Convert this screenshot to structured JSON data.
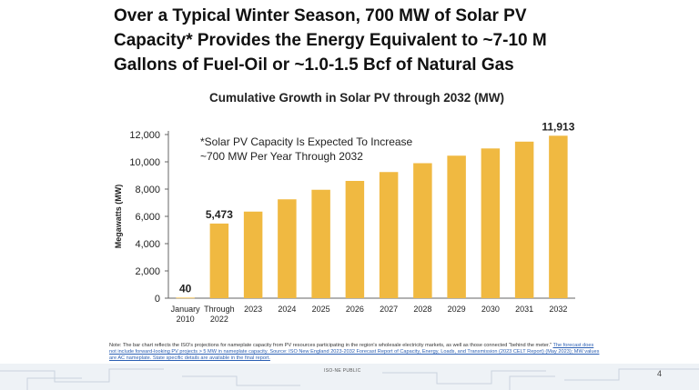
{
  "heading": {
    "line1": "Over a Typical Winter Season, 700 MW of Solar PV",
    "line2": "Capacity* Provides the Energy Equivalent to ~7-10 M",
    "line3": "Gallons of Fuel-Oil or ~1.0-1.5 Bcf of Natural Gas"
  },
  "chart_data": {
    "type": "bar",
    "title": "Cumulative Growth in Solar PV through 2032 (MW)",
    "ylabel": "Megawatts (MW)",
    "xlabel": "",
    "ylim": [
      0,
      12000
    ],
    "yticks": [
      0,
      2000,
      4000,
      6000,
      8000,
      10000,
      12000
    ],
    "ytick_labels": [
      "0",
      "2,000",
      "4,000",
      "6,000",
      "8,000",
      "10,000",
      "12,000"
    ],
    "categories": [
      [
        "January",
        "2010"
      ],
      [
        "Through",
        "2022"
      ],
      [
        "2023"
      ],
      [
        "2024"
      ],
      [
        "2025"
      ],
      [
        "2026"
      ],
      [
        "2027"
      ],
      [
        "2028"
      ],
      [
        "2029"
      ],
      [
        "2030"
      ],
      [
        "2031"
      ],
      [
        "2032"
      ]
    ],
    "values": [
      40,
      5473,
      6350,
      7250,
      7950,
      8600,
      9250,
      9900,
      10450,
      10980,
      11480,
      11913
    ],
    "data_labels": [
      {
        "index": 0,
        "text": "40"
      },
      {
        "index": 1,
        "text": "5,473"
      },
      {
        "index": 11,
        "text": "11,913"
      }
    ],
    "annotation": [
      "*Solar PV Capacity Is Expected To Increase",
      "~700 MW Per Year Through 2032"
    ],
    "bar_color": "#f0b941",
    "grid": false,
    "legend": "none"
  },
  "note": {
    "text": "Note: The bar chart reflects the ISO's projections for nameplate capacity from PV resources participating in the region's wholesale electricity markets, as well as those connected \"behind the meter.\"",
    "link": "The forecast does not include forward-looking PV projects > 5 MW in nameplate capacity. Source: ISO New England 2023-2032 Forecast Report of Capacity, Energy, Loads, and Transmission (2023 CELT Report) (May 2023); MW values are AC nameplate. State specific details are available in the final report."
  },
  "footer": {
    "label": "ISO-NE PUBLIC",
    "page": "4"
  }
}
